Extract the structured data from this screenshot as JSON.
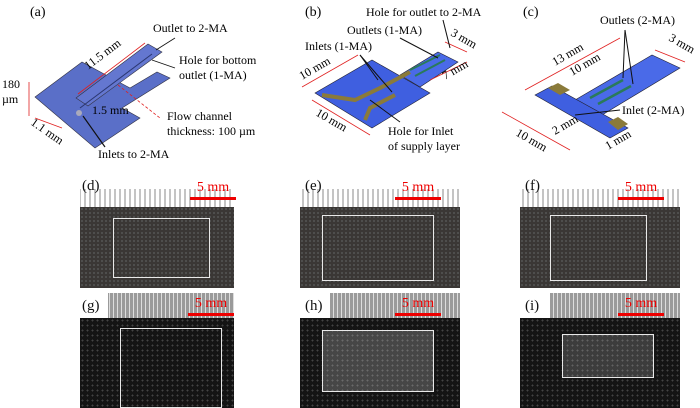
{
  "panels": {
    "a": {
      "label": "(a)",
      "outlet_2ma": "Outlet to 2-MA",
      "hole_bottom": "Hole for bottom",
      "hole_bottom2": "outlet (1-MA)",
      "flow_channel": "Flow channel",
      "thickness": "thickness: 100 µm",
      "inlets_2ma": "Inlets to 2-MA",
      "dim_length": "11.5 mm",
      "dim_width": "1.5 mm",
      "dim_thick_1": "180",
      "dim_thick_2": "µm",
      "dim_side": "1.1 mm"
    },
    "b": {
      "label": "(b)",
      "hole_outlet": "Hole for outlet to 2-MA",
      "outlets": "Outlets (1-MA)",
      "inlets": "Inlets (1-MA)",
      "hole_inlet": "Hole for Inlet",
      "hole_inlet2": "of supply layer",
      "dim_top": "10 mm",
      "dim_bottom": "10 mm",
      "dim_3": "3 mm",
      "dim_7": "7 mm"
    },
    "c": {
      "label": "(c)",
      "outlets": "Outlets (2-MA)",
      "inlet": "Inlet (2-MA)",
      "dim_13": "13 mm",
      "dim_10a": "10 mm",
      "dim_3": "3 mm",
      "dim_10b": "10 mm",
      "dim_2": "2 mm",
      "dim_1": "1 mm"
    },
    "photos": [
      {
        "label": "(d)",
        "scale": "5 mm"
      },
      {
        "label": "(e)",
        "scale": "5 mm"
      },
      {
        "label": "(f)",
        "scale": "5 mm"
      },
      {
        "label": "(g)",
        "scale": "5 mm"
      },
      {
        "label": "(h)",
        "scale": "5 mm"
      },
      {
        "label": "(i)",
        "scale": "5 mm"
      }
    ]
  },
  "colors": {
    "chip_blue": "#5a6fc8",
    "dimension_red": "#e02020",
    "channel_gold": "#8a7a3a",
    "channel_green": "#2a7a5a"
  }
}
